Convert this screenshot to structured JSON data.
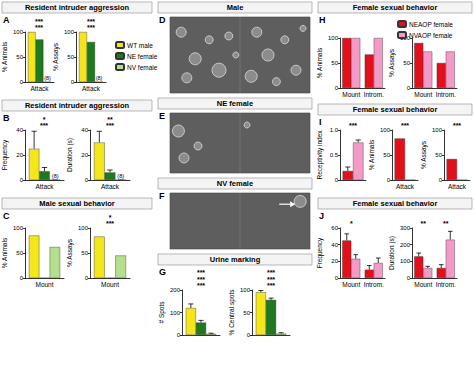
{
  "chart_data": [
    {
      "panel": "A",
      "title": "Resident intruder aggression",
      "type": "bar",
      "y_label": "% Animals",
      "categories": [
        "Attack"
      ],
      "series": [
        {
          "name": "WT male",
          "color": "#f5e61c",
          "values": [
            100
          ]
        },
        {
          "name": "NE female",
          "color": "#1f7a1f",
          "values": [
            85
          ]
        },
        {
          "name": "NV female",
          "color": "#b5df8a",
          "values": [
            0
          ]
        }
      ],
      "ylim": [
        0,
        100
      ],
      "yticks": [
        0,
        50,
        100
      ],
      "grid": false,
      "legend": "right",
      "annotations": [
        {
          "text": "***"
        },
        {
          "text": "***"
        },
        {
          "text": "(8)",
          "series": "NV female"
        }
      ]
    },
    {
      "type": "bar",
      "y_label": "% Assays",
      "categories": [
        "Attack"
      ],
      "series": [
        {
          "name": "WT male",
          "color": "#f5e61c",
          "values": [
            100
          ]
        },
        {
          "name": "NE female",
          "color": "#1f7a1f",
          "values": [
            80
          ]
        },
        {
          "name": "NV female",
          "color": "#b5df8a",
          "values": [
            0
          ]
        }
      ],
      "ylim": [
        0,
        100
      ],
      "yticks": [
        0,
        50,
        100
      ],
      "grid": false,
      "annotations": [
        {
          "text": "***"
        },
        {
          "text": "***"
        },
        {
          "text": "(8)",
          "series": "NV female"
        }
      ]
    },
    {
      "panel": "B",
      "title": "Resident intruder aggression",
      "type": "bar",
      "y_label": "Frequency",
      "categories": [
        "Attack"
      ],
      "series": [
        {
          "name": "WT male",
          "color": "#f5e61c",
          "values": [
            25
          ],
          "errors": [
            14
          ]
        },
        {
          "name": "NE female",
          "color": "#1f7a1f",
          "values": [
            7
          ],
          "errors": [
            3
          ]
        },
        {
          "name": "NV female",
          "color": "#b5df8a",
          "values": [
            0
          ],
          "errors": [
            0
          ]
        }
      ],
      "ylim": [
        0,
        40
      ],
      "yticks": [
        0,
        20,
        40
      ],
      "grid": false,
      "annotations": [
        {
          "text": "*"
        },
        {
          "text": "***"
        },
        {
          "text": "(8)",
          "series": "NV female"
        }
      ]
    },
    {
      "type": "bar",
      "y_label": "Duration (s)",
      "categories": [
        "Attack"
      ],
      "series": [
        {
          "name": "WT male",
          "color": "#f5e61c",
          "values": [
            30
          ],
          "errors": [
            9
          ]
        },
        {
          "name": "NE female",
          "color": "#1f7a1f",
          "values": [
            6
          ],
          "errors": [
            2
          ]
        },
        {
          "name": "NV female",
          "color": "#b5df8a",
          "values": [
            0
          ],
          "errors": [
            0
          ]
        }
      ],
      "ylim": [
        0,
        40
      ],
      "yticks": [
        0,
        20,
        40
      ],
      "grid": false,
      "annotations": [
        {
          "text": "**"
        },
        {
          "text": "***"
        },
        {
          "text": "(8)",
          "series": "NV female"
        }
      ]
    },
    {
      "panel": "C",
      "title": "Male sexual behavior",
      "type": "bar",
      "y_label": "% Animals",
      "categories": [
        "Mount"
      ],
      "series": [
        {
          "name": "WT male",
          "color": "#f5e61c",
          "values": [
            85
          ]
        },
        {
          "name": "NE female",
          "color": "#1f7a1f",
          "values": [
            0
          ]
        },
        {
          "name": "NV female",
          "color": "#b5df8a",
          "values": [
            62
          ]
        }
      ],
      "ylim": [
        0,
        100
      ],
      "yticks": [
        0,
        50,
        100
      ],
      "grid": false
    },
    {
      "type": "bar",
      "y_label": "% Assays",
      "categories": [
        "Mount"
      ],
      "series": [
        {
          "name": "WT male",
          "color": "#f5e61c",
          "values": [
            83
          ]
        },
        {
          "name": "NE female",
          "color": "#1f7a1f",
          "values": [
            0
          ]
        },
        {
          "name": "NV female",
          "color": "#b5df8a",
          "values": [
            45
          ]
        }
      ],
      "ylim": [
        0,
        100
      ],
      "yticks": [
        0,
        50,
        100
      ],
      "grid": false,
      "annotations": [
        {
          "text": "*"
        },
        {
          "text": "***"
        }
      ]
    },
    {
      "panel": "D",
      "type": "image",
      "title": "Male"
    },
    {
      "panel": "E",
      "type": "image",
      "title": "NE female"
    },
    {
      "panel": "F",
      "type": "image",
      "title": "NV female"
    },
    {
      "panel": "G",
      "title": "Urine marking",
      "type": "bar",
      "y_label": "# Spots",
      "categories": [
        null
      ],
      "series": [
        {
          "name": "WT male",
          "color": "#f5e61c",
          "values": [
            120
          ],
          "errors": [
            18
          ]
        },
        {
          "name": "NE female",
          "color": "#1f7a1f",
          "values": [
            55
          ],
          "errors": [
            10
          ]
        },
        {
          "name": "NV female",
          "color": "#b5df8a",
          "values": [
            5
          ],
          "errors": [
            3
          ]
        }
      ],
      "ylim": [
        0,
        200
      ],
      "yticks": [
        0,
        100,
        200
      ],
      "grid": false,
      "annotations": [
        {
          "text": "***"
        },
        {
          "text": "***"
        },
        {
          "text": "***"
        }
      ]
    },
    {
      "type": "bar",
      "y_label": "% Central spots",
      "categories": [
        null
      ],
      "series": [
        {
          "name": "WT male",
          "color": "#f5e61c",
          "values": [
            95
          ],
          "errors": [
            4
          ]
        },
        {
          "name": "NE female",
          "color": "#1f7a1f",
          "values": [
            78
          ],
          "errors": [
            4
          ]
        },
        {
          "name": "NV female",
          "color": "#b5df8a",
          "values": [
            3
          ],
          "errors": [
            2
          ]
        }
      ],
      "ylim": [
        0,
        100
      ],
      "yticks": [
        0,
        50,
        100
      ],
      "grid": false,
      "annotations": [
        {
          "text": "***"
        },
        {
          "text": "***"
        },
        {
          "text": "***"
        }
      ]
    },
    {
      "panel": "H",
      "title": "Female sexual behavior",
      "type": "bar",
      "y_label": "% Animals",
      "categories": [
        "Mount",
        "Introm."
      ],
      "series": [
        {
          "name": "NEAOP female",
          "color": "#e3101b",
          "values": [
            100,
            67
          ]
        },
        {
          "name": "NVAOP female",
          "color": "#f49ac7",
          "values": [
            100,
            100
          ]
        }
      ],
      "ylim": [
        0,
        100
      ],
      "yticks": [
        0,
        50,
        100
      ],
      "grid": false,
      "legend": "top"
    },
    {
      "type": "bar",
      "y_label": "% Assays",
      "categories": [
        "Mount",
        "Introm."
      ],
      "series": [
        {
          "name": "NEAOP female",
          "color": "#e3101b",
          "values": [
            90,
            50
          ]
        },
        {
          "name": "NVAOP female",
          "color": "#f49ac7",
          "values": [
            73,
            73
          ]
        }
      ],
      "ylim": [
        0,
        100
      ],
      "yticks": [
        0,
        50,
        100
      ],
      "grid": false
    },
    {
      "panel": "I",
      "title": "Female sexual behavior",
      "type": "bar",
      "y_label": "Receptivity index",
      "categories": [
        null
      ],
      "series": [
        {
          "name": "NEAOP female",
          "color": "#e3101b",
          "values": [
            0.18
          ],
          "errors": [
            0.08
          ]
        },
        {
          "name": "NVAOP female",
          "color": "#f49ac7",
          "values": [
            0.75
          ],
          "errors": [
            0.05
          ]
        }
      ],
      "ylim": [
        0,
        1
      ],
      "yticks": [
        0,
        0.5,
        {
          "value": 1,
          "label": "1.0"
        }
      ],
      "grid": false,
      "annotations": [
        {
          "text": "***"
        }
      ]
    },
    {
      "type": "bar",
      "y_label": "% Animals",
      "categories": [
        "Attack"
      ],
      "series": [
        {
          "name": "NEAOP female",
          "color": "#e3101b",
          "values": [
            83
          ]
        },
        {
          "name": "NVAOP female",
          "color": "#f49ac7",
          "values": [
            0
          ]
        }
      ],
      "ylim": [
        0,
        100
      ],
      "yticks": [
        0,
        50,
        100
      ],
      "grid": false,
      "annotations": [
        {
          "text": "***"
        }
      ]
    },
    {
      "type": "bar",
      "y_label": "% Assays",
      "categories": [
        "Attack"
      ],
      "series": [
        {
          "name": "NEAOP female",
          "color": "#e3101b",
          "values": [
            42
          ]
        },
        {
          "name": "NVAOP female",
          "color": "#f49ac7",
          "values": [
            0
          ]
        }
      ],
      "ylim": [
        0,
        100
      ],
      "yticks": [
        0,
        50,
        100
      ],
      "grid": false,
      "annotations": [
        {
          "text": "***"
        }
      ]
    },
    {
      "panel": "J",
      "title": "Female sexual behavior",
      "type": "bar",
      "y_label": "Frequency",
      "categories": [
        "Mount",
        "Introm."
      ],
      "series": [
        {
          "name": "NEAOP female",
          "color": "#e3101b",
          "values": [
            45,
            10
          ],
          "errors": [
            8,
            5
          ]
        },
        {
          "name": "NVAOP female",
          "color": "#f49ac7",
          "values": [
            23,
            18
          ],
          "errors": [
            5,
            6
          ]
        }
      ],
      "ylim": [
        0,
        60
      ],
      "yticks": [
        0,
        20,
        40,
        60
      ],
      "grid": false,
      "annotations": [
        {
          "text": "*",
          "category": "Mount"
        }
      ]
    },
    {
      "type": "bar",
      "y_label": "Duration (s)",
      "categories": [
        "Mount",
        "Introm."
      ],
      "series": [
        {
          "name": "NEAOP female",
          "color": "#e3101b",
          "values": [
            130,
            60
          ],
          "errors": [
            20,
            20
          ]
        },
        {
          "name": "NVAOP female",
          "color": "#f49ac7",
          "values": [
            60,
            230
          ],
          "errors": [
            10,
            50
          ]
        }
      ],
      "ylim": [
        0,
        300
      ],
      "yticks": [
        0,
        100,
        200,
        300
      ],
      "grid": false,
      "annotations": [
        {
          "text": "**",
          "category": "Mount"
        },
        {
          "text": "**",
          "category": "Introm."
        }
      ]
    }
  ]
}
